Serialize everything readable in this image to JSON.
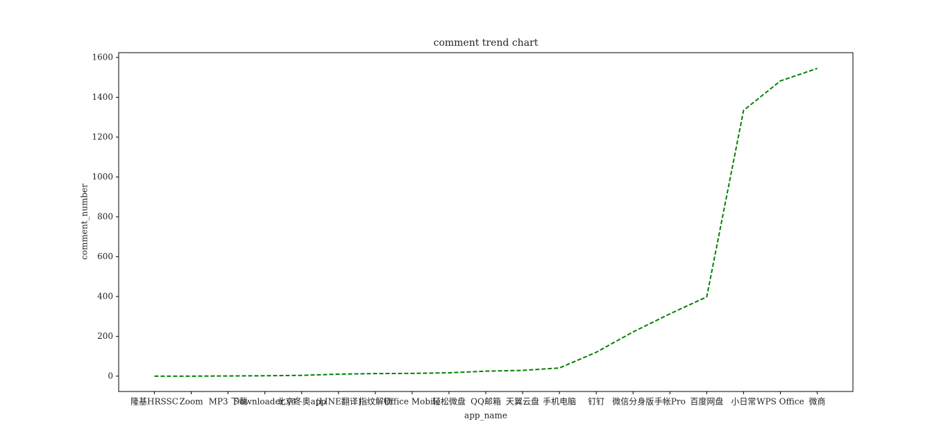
{
  "chart_data": {
    "type": "line",
    "title": "comment trend chart",
    "x_label": "app_name",
    "y_label": "comment_number",
    "categories": [
      "隆基HRSSC",
      "Zoom",
      "MP3 下载",
      "Downloader v4",
      "北京冬奥app",
      "(LINE翻译)",
      "指纹解锁",
      "Office Mobile",
      "轻松微盘",
      "QQ邮箱",
      "天翼云盘",
      "手机电脑",
      "钉钉",
      "微信分身版",
      "手帐Pro",
      "百度网盘",
      "小日常",
      "WPS Office",
      "微商"
    ],
    "series": [
      {
        "name": "comment_number",
        "color": "#008000",
        "values": [
          0,
          0,
          1,
          2,
          4,
          10,
          13,
          14,
          17,
          25,
          29,
          41,
          120,
          222,
          313,
          398,
          1334,
          1482,
          1545
        ]
      }
    ],
    "ylim": [
      -77,
      1624
    ],
    "yticks": [
      0,
      200,
      400,
      600,
      800,
      1000,
      1200,
      1400,
      1600
    ]
  }
}
